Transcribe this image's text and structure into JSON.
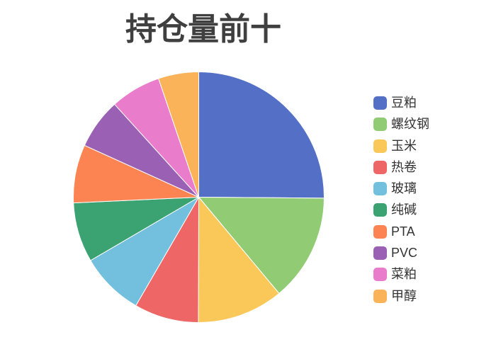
{
  "chart_data": {
    "type": "pie",
    "title": "持仓量前十",
    "categories": [
      "豆粕",
      "螺纹钢",
      "玉米",
      "热卷",
      "玻璃",
      "纯碱",
      "PTA",
      "PVC",
      "菜粕",
      "甲醇"
    ],
    "values": [
      25.1,
      13.8,
      11.1,
      8.3,
      8.2,
      7.7,
      7.5,
      6.5,
      6.5,
      5.2
    ],
    "values_unit": "estimated_percent_share",
    "colors": [
      "#5470c6",
      "#91cc75",
      "#fac858",
      "#ee6666",
      "#73c0de",
      "#3ba272",
      "#fc8452",
      "#9a60b4",
      "#ea7ccc",
      "#fbb35a"
    ],
    "start_angle_deg": 0,
    "direction": "clockwise",
    "slice_border_color": "#ffffff",
    "legend_position": "right",
    "labels_on_slices": false,
    "background_color": "#ffffff",
    "title_color": "#3f3f3f"
  }
}
